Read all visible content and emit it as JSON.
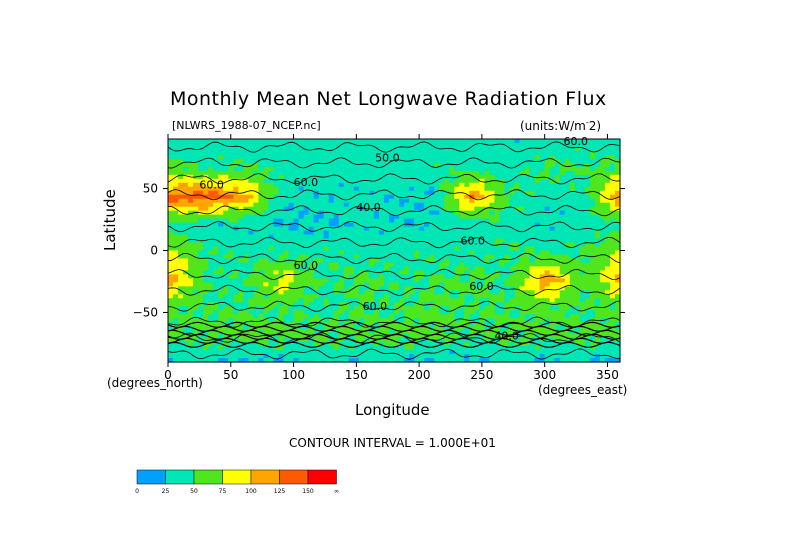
{
  "chart_data": {
    "type": "heatmap",
    "title": "Monthly Mean Net Longwave Radiation Flux",
    "file": "[NLWRS_1988-07_NCEP.nc]",
    "units_prefix": "(units:W/m",
    "units_exp": "-",
    "units_suffix": "2)",
    "xlabel": "Longitude",
    "ylabel": "Latitude",
    "x_unit_label": "(degrees_east)",
    "y_unit_label": "(degrees_north)",
    "xlim": [
      0,
      360
    ],
    "ylim": [
      -90,
      90
    ],
    "x_ticks": [
      "0",
      "50",
      "100",
      "150",
      "200",
      "250",
      "300",
      "350"
    ],
    "y_ticks": [
      "50",
      "0",
      "−50"
    ],
    "x_tick_values": [
      0,
      50,
      100,
      150,
      200,
      250,
      300,
      350
    ],
    "y_tick_values": [
      50,
      0,
      -50
    ],
    "contour_interval_text": "CONTOUR INTERVAL = 1.000E+01",
    "contour_labels": [
      {
        "text": "60.0",
        "lon": 25,
        "lat": 50
      },
      {
        "text": "60.0",
        "lon": 100,
        "lat": 52
      },
      {
        "text": "50.0",
        "lon": 165,
        "lat": 72
      },
      {
        "text": "40.0",
        "lon": 150,
        "lat": 32
      },
      {
        "text": "60.0",
        "lon": 233,
        "lat": 5
      },
      {
        "text": "60.0",
        "lon": 100,
        "lat": -15
      },
      {
        "text": "60.0",
        "lon": 240,
        "lat": -32
      },
      {
        "text": "60.0",
        "lon": 155,
        "lat": -48
      },
      {
        "text": "40.0",
        "lon": 260,
        "lat": -72
      },
      {
        "text": "60.0",
        "lon": 315,
        "lat": 85
      }
    ],
    "colorbar": {
      "levels": [
        "0",
        "25",
        "50",
        "75",
        "100",
        "125",
        "150",
        "∞"
      ],
      "colors": [
        "#00a0ff",
        "#00e6b4",
        "#50e61e",
        "#ffff00",
        "#ffa500",
        "#ff5a00",
        "#ff0000"
      ]
    },
    "field_grid": {
      "lon_step": 30,
      "lat_step": 20,
      "note_values": [
        [
          35,
          35,
          35,
          35,
          35,
          35,
          35,
          35,
          35,
          35,
          35,
          35
        ],
        [
          60,
          45,
          55,
          40,
          40,
          35,
          40,
          40,
          45,
          40,
          55,
          50
        ],
        [
          130,
          140,
          110,
          35,
          30,
          35,
          30,
          30,
          120,
          50,
          35,
          40
        ],
        [
          40,
          35,
          30,
          25,
          25,
          30,
          30,
          30,
          35,
          40,
          30,
          35
        ],
        [
          80,
          45,
          45,
          40,
          45,
          40,
          40,
          45,
          40,
          50,
          45,
          50
        ],
        [
          110,
          45,
          45,
          90,
          45,
          55,
          45,
          50,
          55,
          45,
          120,
          50
        ],
        [
          55,
          50,
          50,
          50,
          45,
          50,
          50,
          55,
          50,
          50,
          55,
          50
        ],
        [
          55,
          55,
          60,
          55,
          55,
          55,
          60,
          55,
          50,
          55,
          55,
          55
        ],
        [
          20,
          30,
          15,
          25,
          30,
          25,
          25,
          20,
          25,
          30,
          20,
          25
        ]
      ]
    }
  }
}
